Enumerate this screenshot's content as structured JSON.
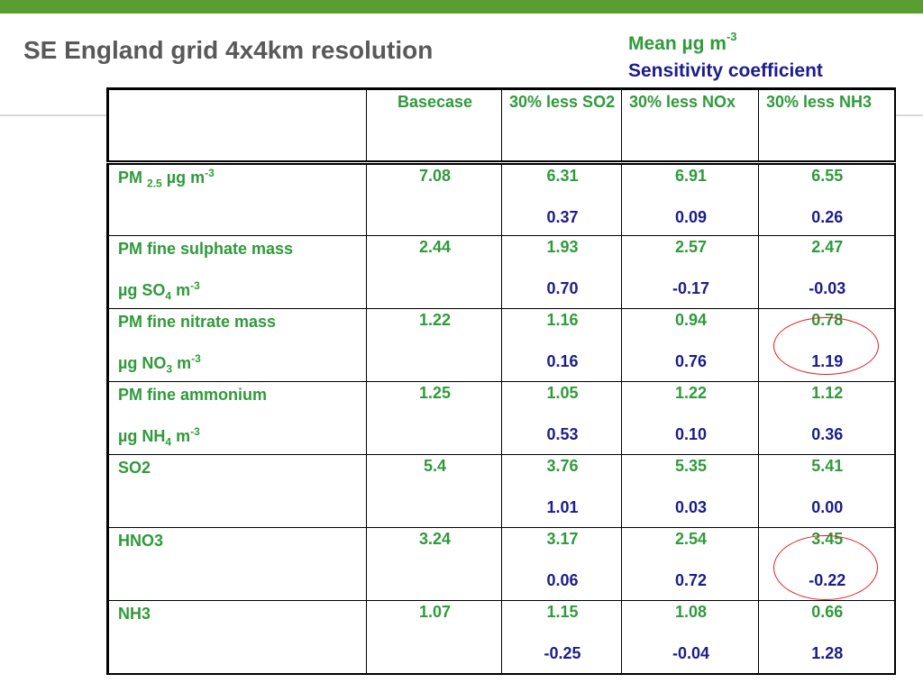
{
  "title": "SE England grid 4x4km resolution",
  "legend": {
    "mean_label": "Mean µg  m",
    "mean_sup": "-3",
    "sensitivity_label": "Sensitivity coefficient"
  },
  "colors": {
    "top_bar": "#5a9e32",
    "mean_text": "#2f9a3a",
    "sensitivity_text": "#1c1c8c",
    "title_text": "#595959",
    "highlight_circle": "#e02020"
  },
  "table": {
    "headers": [
      "",
      "Basecase",
      "30% less SO2",
      "30% less NOx",
      "30% less NH3"
    ],
    "rows": [
      {
        "label_pre": "PM ",
        "label_sub": "2.5",
        "label_post": "  µg  m",
        "label_sup": "-3",
        "unit_pre": "",
        "unit_sub": "",
        "unit_post": "",
        "unit_sup": "",
        "basecase": "7.08",
        "so2": {
          "mean": "6.31",
          "sens": "0.37"
        },
        "nox": {
          "mean": "6.91",
          "sens": "0.09"
        },
        "nh3": {
          "mean": "6.55",
          "sens": "0.26"
        }
      },
      {
        "label_pre": "PM fine sulphate mass",
        "label_sub": "",
        "label_post": "",
        "label_sup": "",
        "unit_pre": "µg SO",
        "unit_sub": "4",
        "unit_post": " m",
        "unit_sup": "-3",
        "basecase": "2.44",
        "so2": {
          "mean": "1.93",
          "sens": "0.70"
        },
        "nox": {
          "mean": "2.57",
          "sens": "-0.17"
        },
        "nh3": {
          "mean": "2.47",
          "sens": "-0.03"
        }
      },
      {
        "label_pre": "PM fine nitrate mass",
        "label_sub": "",
        "label_post": "",
        "label_sup": "",
        "unit_pre": "µg NO",
        "unit_sub": "3",
        "unit_post": " m",
        "unit_sup": "-3",
        "basecase": "1.22",
        "so2": {
          "mean": "1.16",
          "sens": "0.16"
        },
        "nox": {
          "mean": "0.94",
          "sens": "0.76"
        },
        "nh3": {
          "mean": "0.78",
          "sens": "1.19"
        }
      },
      {
        "label_pre": "PM fine ammonium",
        "label_sub": "",
        "label_post": "",
        "label_sup": "",
        "unit_pre": "µg NH",
        "unit_sub": "4",
        "unit_post": " m",
        "unit_sup": "-3",
        "basecase": "1.25",
        "so2": {
          "mean": "1.05",
          "sens": "0.53"
        },
        "nox": {
          "mean": "1.22",
          "sens": "0.10"
        },
        "nh3": {
          "mean": "1.12",
          "sens": "0.36"
        }
      },
      {
        "label_pre": "SO2",
        "label_sub": "",
        "label_post": "",
        "label_sup": "",
        "unit_pre": "",
        "unit_sub": "",
        "unit_post": "",
        "unit_sup": "",
        "basecase": "5.4",
        "so2": {
          "mean": "3.76",
          "sens": "1.01"
        },
        "nox": {
          "mean": "5.35",
          "sens": "0.03"
        },
        "nh3": {
          "mean": "5.41",
          "sens": "0.00"
        }
      },
      {
        "label_pre": "HNO3",
        "label_sub": "",
        "label_post": "",
        "label_sup": "",
        "unit_pre": "",
        "unit_sub": "",
        "unit_post": "",
        "unit_sup": "",
        "basecase": "3.24",
        "so2": {
          "mean": "3.17",
          "sens": "0.06"
        },
        "nox": {
          "mean": "2.54",
          "sens": "0.72"
        },
        "nh3": {
          "mean": "3.45",
          "sens": "-0.22"
        }
      },
      {
        "label_pre": "NH3",
        "label_sub": "",
        "label_post": "",
        "label_sup": "",
        "unit_pre": "",
        "unit_sub": "",
        "unit_post": "",
        "unit_sup": "",
        "basecase": "1.07",
        "so2": {
          "mean": "1.15",
          "sens": "-0.25"
        },
        "nox": {
          "mean": "1.08",
          "sens": "-0.04"
        },
        "nh3": {
          "mean": "0.66",
          "sens": "1.28"
        }
      }
    ]
  }
}
